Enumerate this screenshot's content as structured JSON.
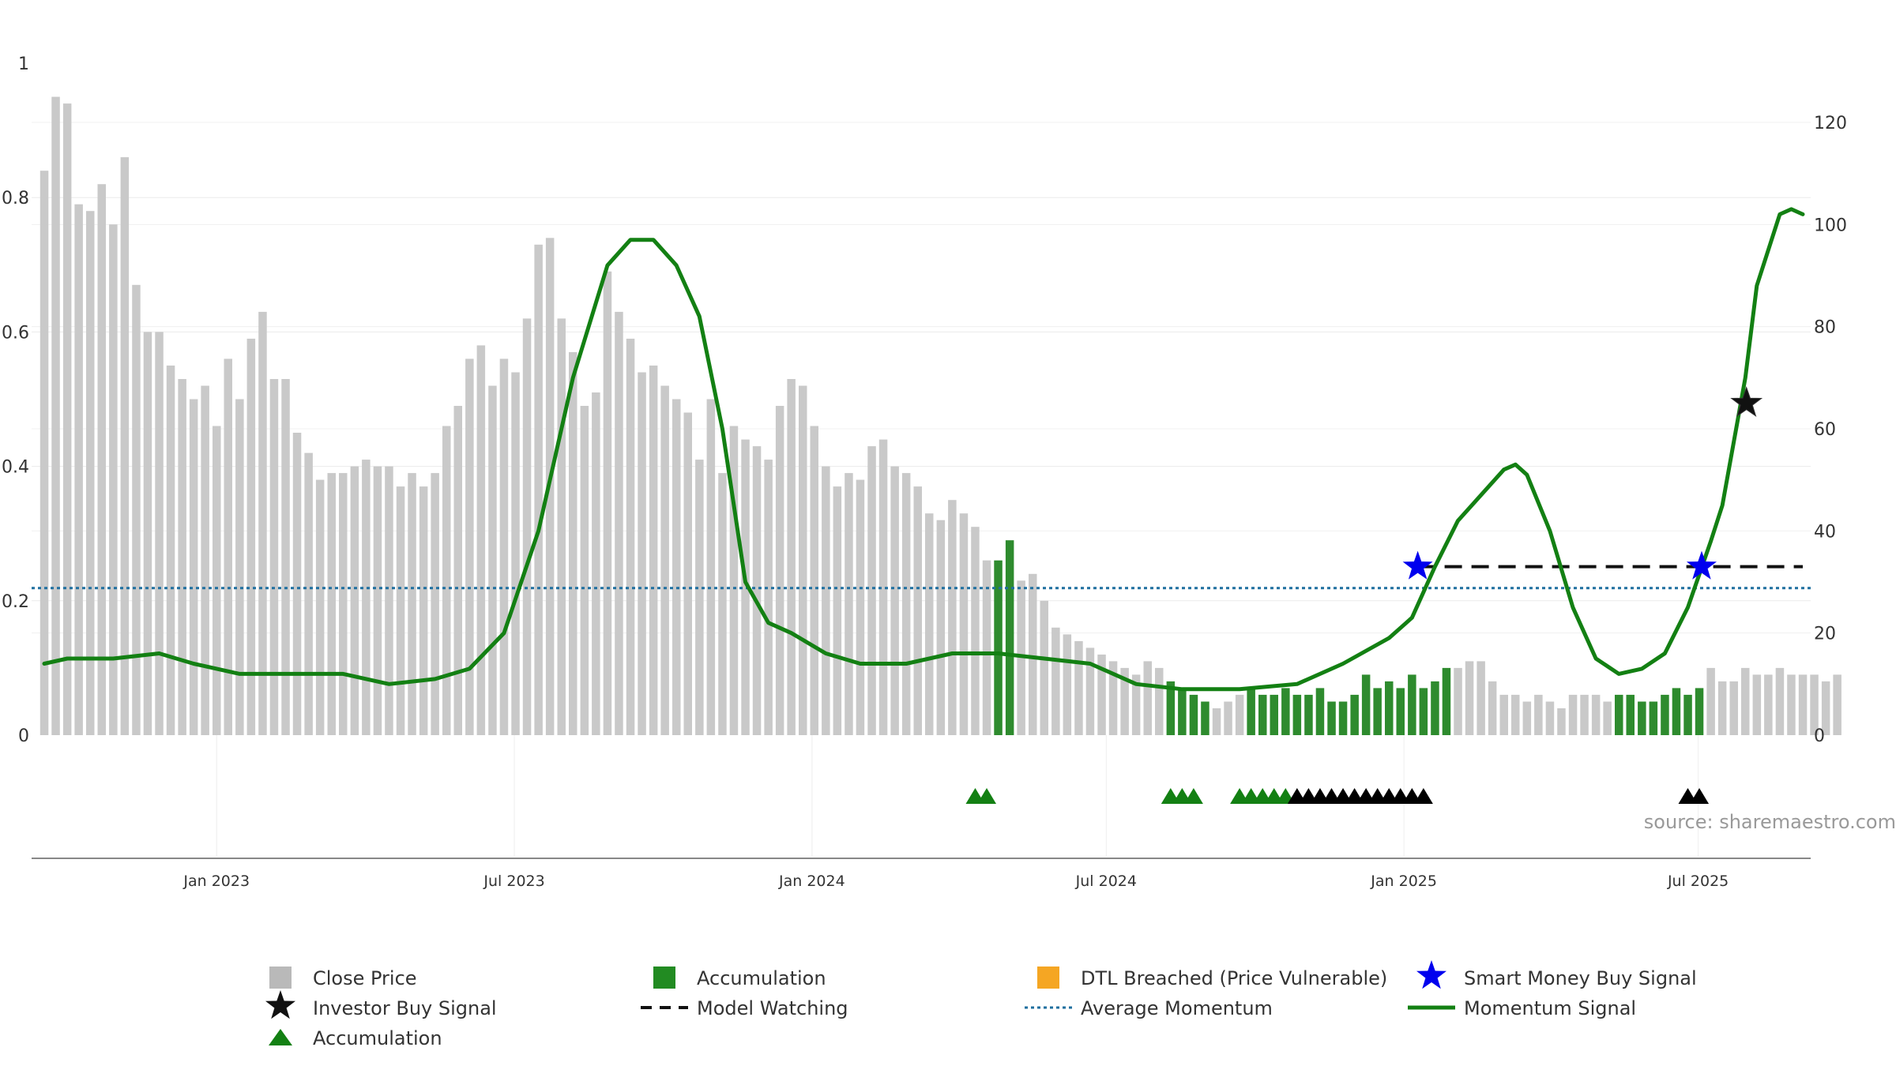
{
  "chart_data": {
    "type": "bar+line",
    "source": "source: sharemaestro.com",
    "left_axis": {
      "ylim": [
        0,
        1
      ],
      "ticks": [
        "0",
        "0.2",
        "0.4",
        "0.6",
        "0.8",
        "1"
      ]
    },
    "right_axis": {
      "ylim": [
        0,
        132
      ],
      "ticks": [
        "0",
        "20",
        "40",
        "60",
        "80",
        "100",
        "120"
      ]
    },
    "x_axis": {
      "start_week": 0,
      "end_week": 153,
      "tick_labels": [
        {
          "label": "Jan 2023",
          "week": 15
        },
        {
          "label": "Jul 2023",
          "week": 40.9
        },
        {
          "label": "Jan 2024",
          "week": 66.8
        },
        {
          "label": "Jul 2024",
          "week": 92.4
        },
        {
          "label": "Jan 2025",
          "week": 118.3
        },
        {
          "label": "Jul 2025",
          "week": 143.9
        }
      ]
    },
    "close_price": [
      0.84,
      0.95,
      0.94,
      0.79,
      0.78,
      0.82,
      0.76,
      0.86,
      0.67,
      0.6,
      0.6,
      0.55,
      0.53,
      0.5,
      0.52,
      0.46,
      0.56,
      0.5,
      0.59,
      0.63,
      0.53,
      0.53,
      0.45,
      0.42,
      0.38,
      0.39,
      0.39,
      0.4,
      0.41,
      0.4,
      0.4,
      0.37,
      0.39,
      0.37,
      0.39,
      0.46,
      0.49,
      0.56,
      0.58,
      0.52,
      0.56,
      0.54,
      0.62,
      0.73,
      0.74,
      0.62,
      0.57,
      0.49,
      0.51,
      0.69,
      0.63,
      0.59,
      0.54,
      0.55,
      0.52,
      0.5,
      0.48,
      0.41,
      0.5,
      0.39,
      0.46,
      0.44,
      0.43,
      0.41,
      0.49,
      0.53,
      0.52,
      0.46,
      0.4,
      0.37,
      0.39,
      0.38,
      0.43,
      0.44,
      0.4,
      0.39,
      0.37,
      0.33,
      0.32,
      0.35,
      0.33,
      0.31,
      0.26,
      0.26,
      0.29,
      0.23,
      0.24,
      0.2,
      0.16,
      0.15,
      0.14,
      0.13,
      0.12,
      0.11,
      0.1,
      0.09,
      0.11,
      0.1,
      0.08,
      0.07,
      0.06,
      0.05,
      0.04,
      0.05,
      0.06,
      0.07,
      0.06,
      0.06,
      0.07,
      0.06,
      0.06,
      0.07,
      0.05,
      0.05,
      0.06,
      0.09,
      0.07,
      0.08,
      0.07,
      0.09,
      0.07,
      0.08,
      0.1,
      0.1,
      0.11,
      0.11,
      0.08,
      0.06,
      0.06,
      0.05,
      0.06,
      0.05,
      0.04,
      0.06,
      0.06,
      0.06,
      0.05,
      0.06,
      0.06,
      0.05,
      0.05,
      0.06,
      0.07,
      0.06,
      0.07,
      0.1,
      0.08,
      0.08,
      0.1,
      0.09,
      0.09,
      0.1,
      0.09,
      0.09,
      0.09,
      0.08,
      0.09
    ],
    "accumulation_bars": [
      83,
      84,
      98,
      99,
      100,
      101,
      105,
      106,
      107,
      108,
      109,
      110,
      111,
      112,
      113,
      114,
      115,
      116,
      117,
      118,
      119,
      120,
      121,
      122,
      137,
      138,
      139,
      140,
      141,
      142,
      143,
      144
    ],
    "momentum_signal": [
      [
        0,
        14
      ],
      [
        2,
        15
      ],
      [
        6,
        15
      ],
      [
        10,
        16
      ],
      [
        13,
        14
      ],
      [
        17,
        12
      ],
      [
        22,
        12
      ],
      [
        26,
        12
      ],
      [
        30,
        10
      ],
      [
        34,
        11
      ],
      [
        37,
        13
      ],
      [
        40,
        20
      ],
      [
        43,
        40
      ],
      [
        46,
        70
      ],
      [
        49,
        92
      ],
      [
        51,
        97
      ],
      [
        53,
        97
      ],
      [
        55,
        92
      ],
      [
        57,
        82
      ],
      [
        59,
        60
      ],
      [
        61,
        30
      ],
      [
        63,
        22
      ],
      [
        65,
        20
      ],
      [
        68,
        16
      ],
      [
        71,
        14
      ],
      [
        75,
        14
      ],
      [
        79,
        16
      ],
      [
        83,
        16
      ],
      [
        87,
        15
      ],
      [
        91,
        14
      ],
      [
        95,
        10
      ],
      [
        99,
        9
      ],
      [
        104,
        9
      ],
      [
        109,
        10
      ],
      [
        113,
        14
      ],
      [
        117,
        19
      ],
      [
        119,
        23
      ],
      [
        121,
        33
      ],
      [
        123,
        42
      ],
      [
        125,
        47
      ],
      [
        127,
        52
      ],
      [
        128,
        53
      ],
      [
        129,
        51
      ],
      [
        131,
        40
      ],
      [
        133,
        25
      ],
      [
        135,
        15
      ],
      [
        137,
        12
      ],
      [
        139,
        13
      ],
      [
        141,
        16
      ],
      [
        143,
        25
      ],
      [
        145,
        38
      ],
      [
        146,
        45
      ],
      [
        148,
        70
      ],
      [
        149,
        88
      ],
      [
        151,
        102
      ],
      [
        152,
        103
      ],
      [
        153,
        102
      ]
    ],
    "average_momentum": 28.8,
    "model_watching": {
      "from_week": 119.5,
      "to_week": 153,
      "level": 33
    },
    "smart_money_buy_signals": [
      [
        119.5,
        33
      ],
      [
        144.2,
        33
      ]
    ],
    "investor_buy_signals": [
      [
        148.1,
        65
      ]
    ],
    "accumulation_markers": [
      81,
      82,
      98,
      99,
      100,
      104,
      105,
      106,
      107,
      108
    ],
    "investor_markers": [
      109,
      110,
      111,
      112,
      113,
      114,
      115,
      116,
      117,
      118,
      119,
      120,
      143,
      144
    ],
    "colors": {
      "close": "#c9c9c9",
      "accumulation": "#2e8b2e",
      "momentum": "#138013",
      "average": "#1f6f9f",
      "watching": "#111111",
      "smart_money": "#0000ee",
      "investor": "#111111",
      "dtl": "#f5a623",
      "marker_green": "#138013",
      "marker_black": "#000000"
    }
  },
  "legend": {
    "items": [
      {
        "label": "Close Price",
        "kind": "square",
        "color": "#b9b9b9"
      },
      {
        "label": "Accumulation",
        "kind": "square",
        "color": "#228b22"
      },
      {
        "label": "DTL Breached (Price Vulnerable)",
        "kind": "square",
        "color": "#f5a623"
      },
      {
        "label": "Smart Money Buy Signal",
        "kind": "star",
        "color": "#0000ee"
      },
      {
        "label": "Investor Buy Signal",
        "kind": "star",
        "color": "#111111"
      },
      {
        "label": "Model Watching",
        "kind": "dash",
        "color": "#111111"
      },
      {
        "label": "Average Momentum",
        "kind": "dot",
        "color": "#1f6f9f"
      },
      {
        "label": "Momentum Signal",
        "kind": "line",
        "color": "#138013"
      },
      {
        "label": "Accumulation",
        "kind": "triangle",
        "color": "#138013"
      }
    ]
  }
}
